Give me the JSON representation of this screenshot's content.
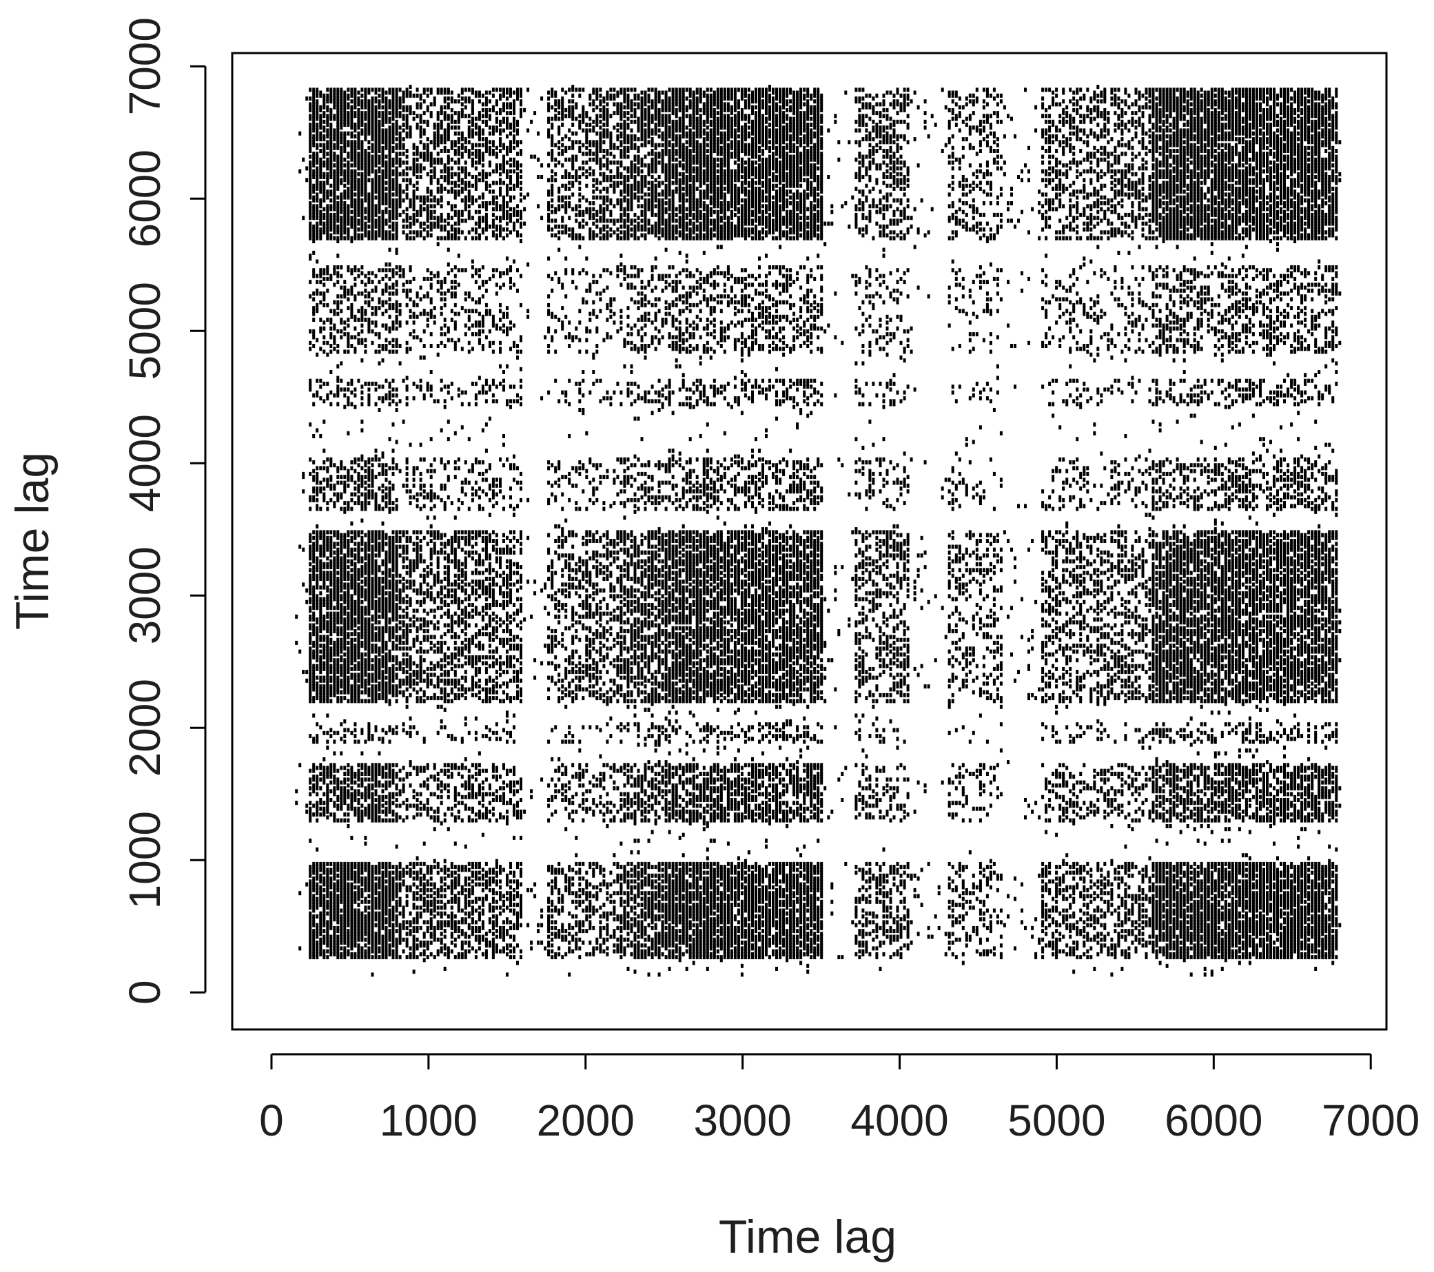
{
  "chart_data": {
    "type": "scatter",
    "title": "",
    "xlabel": "Time lag",
    "ylabel": "Time lag",
    "xlim": [
      -250,
      7100
    ],
    "ylim": [
      -280,
      7100
    ],
    "xticks": [
      0,
      1000,
      2000,
      3000,
      4000,
      5000,
      6000,
      7000
    ],
    "yticks": [
      0,
      1000,
      2000,
      3000,
      4000,
      5000,
      6000,
      7000
    ],
    "xtick_labels": [
      "0",
      "1000",
      "2000",
      "3000",
      "4000",
      "5000",
      "6000",
      "7000"
    ],
    "ytick_labels": [
      "0",
      "1000",
      "2000",
      "3000",
      "4000",
      "5000",
      "6000",
      "7000"
    ],
    "grid": false,
    "point_color": "#000000",
    "x_clusters": [
      {
        "range": [
          220,
          800
        ],
        "density": 0.92
      },
      {
        "range": [
          800,
          1600
        ],
        "density": 0.55
      },
      {
        "range": [
          1750,
          2200
        ],
        "density": 0.45
      },
      {
        "range": [
          2200,
          2500
        ],
        "density": 0.7
      },
      {
        "range": [
          2500,
          3500
        ],
        "density": 0.9
      },
      {
        "range": [
          3700,
          4050
        ],
        "density": 0.45
      },
      {
        "range": [
          4300,
          4650
        ],
        "density": 0.3
      },
      {
        "range": [
          4900,
          5600
        ],
        "density": 0.45
      },
      {
        "range": [
          5600,
          6780
        ],
        "density": 0.9
      }
    ],
    "y_clusters": [
      {
        "range": [
          280,
          1000
        ],
        "density": 0.92
      },
      {
        "range": [
          1300,
          1750
        ],
        "density": 0.7
      },
      {
        "range": [
          1900,
          2050
        ],
        "density": 0.35
      },
      {
        "range": [
          2200,
          3500
        ],
        "density": 0.85
      },
      {
        "range": [
          3650,
          4050
        ],
        "density": 0.45
      },
      {
        "range": [
          4450,
          4650
        ],
        "density": 0.35
      },
      {
        "range": [
          4850,
          5500
        ],
        "density": 0.4
      },
      {
        "range": [
          5700,
          6850
        ],
        "density": 0.9
      }
    ]
  }
}
